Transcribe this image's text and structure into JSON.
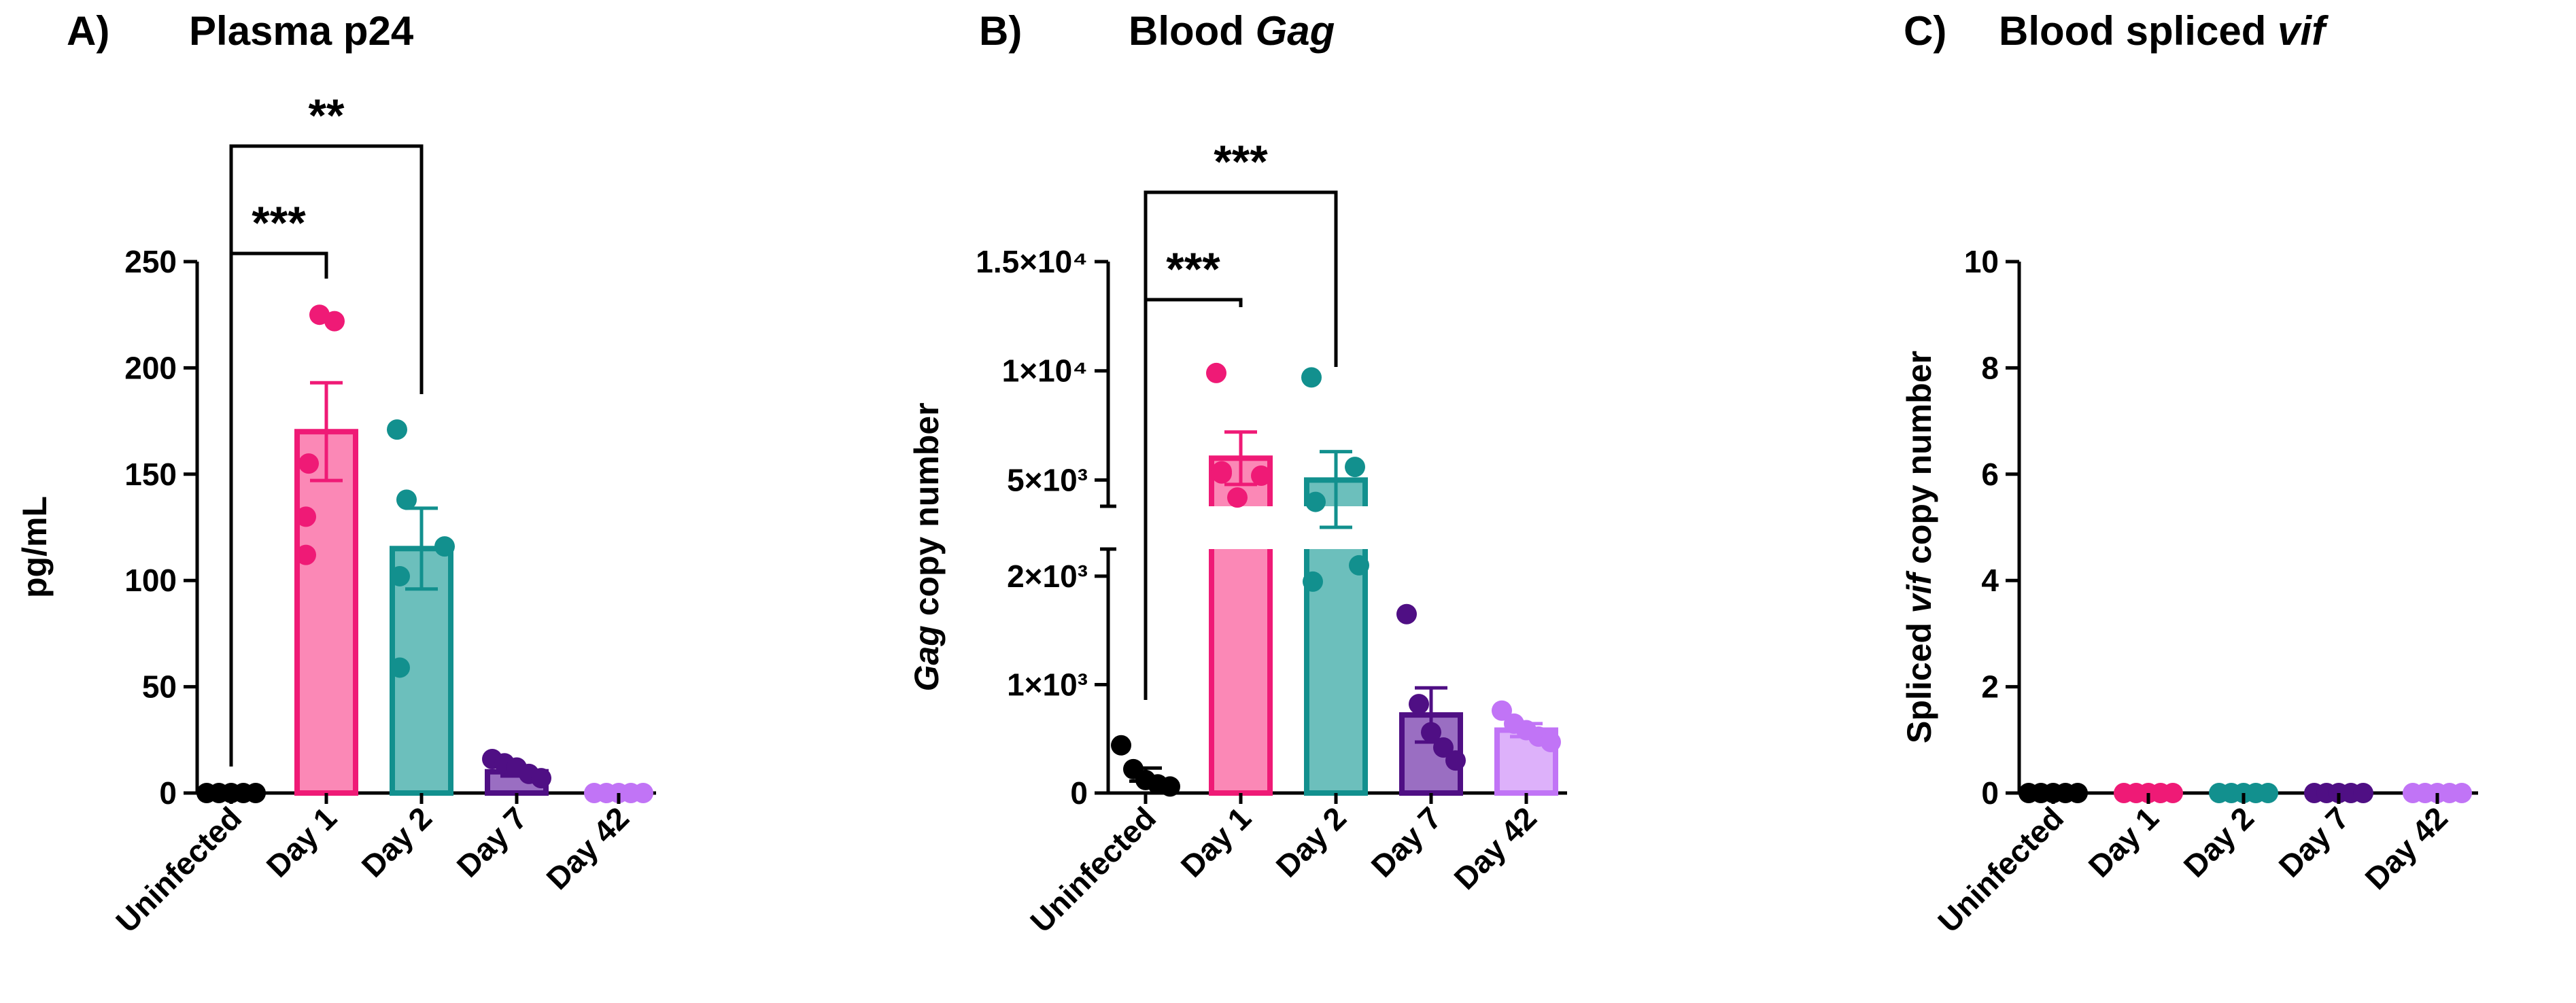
{
  "figure": {
    "colors": {
      "uninfected": "#000000",
      "day1": "#ef1a76",
      "day2": "#12908e",
      "day7": "#4f0f84",
      "day42": "#c174f6",
      "day1_fill": "#fb88b6",
      "day2_fill": "#6cbfbc",
      "day7_fill": "#9a6ec2",
      "day42_fill": "#ddb1fa"
    }
  },
  "chart_data": [
    {
      "panel": "A)",
      "title": "Plasma p24",
      "type": "bar",
      "categories": [
        "Uninfected",
        "Day 1",
        "Day 2",
        "Day 7",
        "Day 42"
      ],
      "ylabel": "pg/mL",
      "ylim": [
        0,
        250
      ],
      "yticks": [
        0,
        50,
        100,
        150,
        200,
        250
      ],
      "ytick_labels": [
        "0",
        "50",
        "100",
        "150",
        "200",
        "250"
      ],
      "means": [
        0,
        170,
        115,
        10,
        0
      ],
      "sem": [
        0,
        23,
        19,
        2,
        0
      ],
      "points": [
        [
          0,
          0,
          0,
          0,
          0
        ],
        [
          225,
          222,
          155,
          130,
          112
        ],
        [
          171,
          138,
          116,
          102,
          59
        ],
        [
          16,
          14,
          12,
          9,
          7
        ],
        [
          0,
          0,
          0,
          0,
          0
        ]
      ],
      "significance": [
        {
          "from": "Uninfected",
          "to": "Day 1",
          "label": "***"
        },
        {
          "from": "Uninfected",
          "to": "Day 2",
          "label": "**"
        }
      ]
    },
    {
      "panel": "B)",
      "title": "Blood ",
      "title_italic": "Gag",
      "type": "bar",
      "axis_break": true,
      "categories": [
        "Uninfected",
        "Day 1",
        "Day 2",
        "Day 7",
        "Day 42"
      ],
      "ylabel_italic": "Gag",
      "ylabel": " copy number",
      "yticks": [
        0,
        1000,
        2000,
        5000,
        10000,
        15000
      ],
      "ytick_labels": [
        "0",
        "1×10³",
        "2×10³",
        "5×10³",
        "1×10⁴",
        "1.5×10⁴"
      ],
      "means": [
        170,
        6000,
        5000,
        720,
        580
      ],
      "sem": [
        60,
        1200,
        1300,
        250,
        60
      ],
      "points": [
        [
          440,
          220,
          120,
          80,
          60
        ],
        [
          9900,
          5400,
          5300,
          5200,
          4200
        ],
        [
          9700,
          5600,
          4000,
          2100,
          1950
        ],
        [
          1650,
          820,
          560,
          420,
          300
        ],
        [
          760,
          640,
          580,
          520,
          470
        ]
      ],
      "significance": [
        {
          "from": "Uninfected",
          "to": "Day 1",
          "label": "***"
        },
        {
          "from": "Uninfected",
          "to": "Day 2",
          "label": "***"
        }
      ]
    },
    {
      "panel": "C)",
      "title": "Blood spliced ",
      "title_italic": "vif",
      "type": "bar",
      "categories": [
        "Uninfected",
        "Day 1",
        "Day 2",
        "Day 7",
        "Day 42"
      ],
      "ylabel_pre": "Spliced ",
      "ylabel_italic": "vif",
      "ylabel": " copy number",
      "ylim": [
        0,
        10
      ],
      "yticks": [
        0,
        2,
        4,
        6,
        8,
        10
      ],
      "ytick_labels": [
        "0",
        "2",
        "4",
        "6",
        "8",
        "10"
      ],
      "means": [
        0,
        0,
        0,
        0,
        0
      ],
      "sem": [
        0,
        0,
        0,
        0,
        0
      ],
      "points": [
        [
          0,
          0,
          0,
          0,
          0
        ],
        [
          0,
          0,
          0,
          0,
          0
        ],
        [
          0,
          0,
          0,
          0,
          0
        ],
        [
          0,
          0,
          0,
          0,
          0
        ],
        [
          0,
          0,
          0,
          0,
          0
        ]
      ],
      "significance": []
    }
  ]
}
